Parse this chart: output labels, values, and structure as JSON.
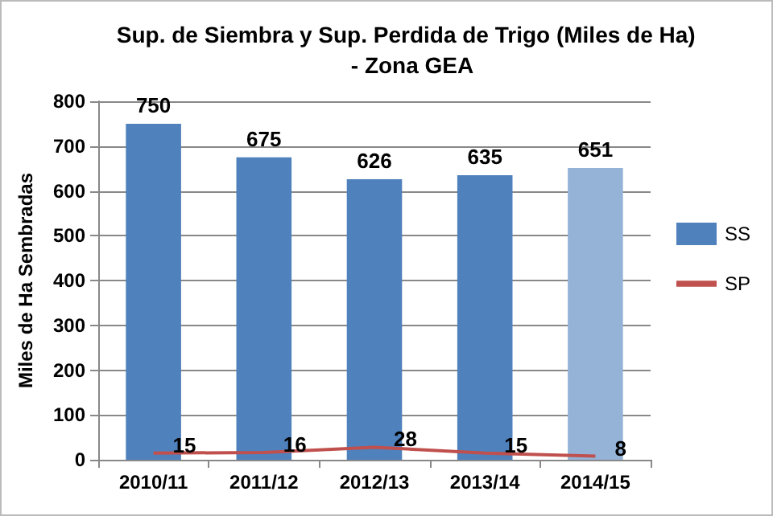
{
  "chart_data": {
    "type": "bar",
    "title": "Sup. de Siembra y Sup. Perdida de Trigo (Miles de Ha)  - Zona GEA",
    "ylabel": "Miles de Ha Sembradas",
    "categories": [
      "2010/11",
      "2011/12",
      "2012/13",
      "2013/14",
      "2014/15"
    ],
    "series": [
      {
        "name": "SS",
        "color": "#4f81bd",
        "colors": [
          "#4f81bd",
          "#4f81bd",
          "#4f81bd",
          "#4f81bd",
          "#95b3d7"
        ],
        "values": [
          750,
          675,
          626,
          635,
          651
        ]
      },
      {
        "name": "SP",
        "type": "line",
        "color": "#c0504d",
        "values": [
          15,
          16,
          28,
          15,
          8
        ]
      }
    ],
    "ylim": [
      0,
      800
    ],
    "yticks": [
      0,
      100,
      200,
      300,
      400,
      500,
      600,
      700,
      800
    ],
    "grid": "y",
    "legend": "right",
    "data_labels": true,
    "marker": "none"
  }
}
